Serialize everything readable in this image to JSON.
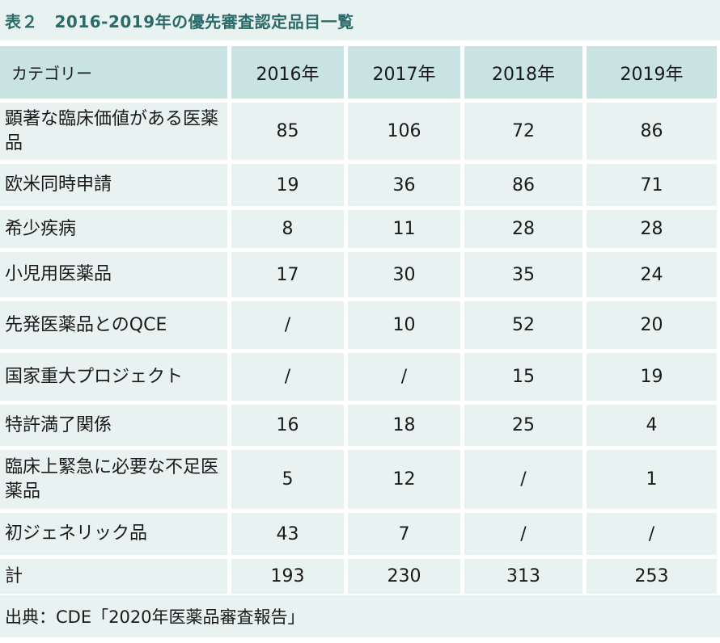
{
  "title": "表２　2016-2019年の優先審査認定品目一覧",
  "header": {
    "category": "カテゴリー",
    "years": [
      "2016年",
      "2017年",
      "2018年",
      "2019年"
    ]
  },
  "rows": [
    {
      "category": "顕著な臨床価値がある医薬品",
      "values": [
        "85",
        "106",
        "72",
        "86"
      ]
    },
    {
      "category": "欧米同時申請",
      "values": [
        "19",
        "36",
        "86",
        "71"
      ]
    },
    {
      "category": "希少疾病",
      "values": [
        "8",
        "11",
        "28",
        "28"
      ]
    },
    {
      "category": "小児用医薬品",
      "values": [
        "17",
        "30",
        "35",
        "24"
      ]
    },
    {
      "category": "先発医薬品とのQCE",
      "values": [
        "/",
        "10",
        "52",
        "20"
      ]
    },
    {
      "category": "国家重大プロジェクト",
      "values": [
        "/",
        "/",
        "15",
        "19"
      ]
    },
    {
      "category": "特許満了関係",
      "values": [
        "16",
        "18",
        "25",
        "4"
      ]
    },
    {
      "category": "臨床上緊急に必要な不足医薬品",
      "values": [
        "5",
        "12",
        "/",
        "1"
      ]
    },
    {
      "category": "初ジェネリック品",
      "values": [
        "43",
        "7",
        "/",
        "/"
      ]
    },
    {
      "category": "計",
      "values": [
        "193",
        "230",
        "313",
        "253"
      ]
    }
  ],
  "source": "出典：CDE「2020年医薬品審査報告」",
  "colors": {
    "title_text": "#2a6b6a",
    "header_bg": "#c9e3e2",
    "cell_bg": "#e8f2f1"
  }
}
